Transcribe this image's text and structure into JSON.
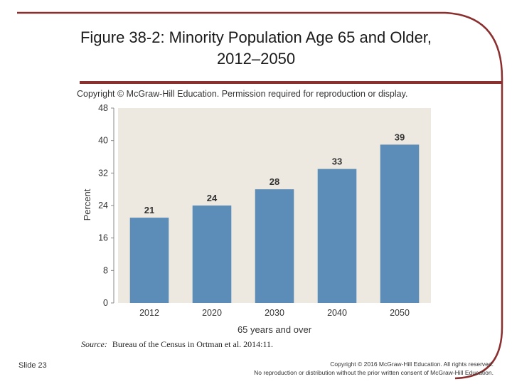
{
  "slide": {
    "title_line1": "Figure 38-2: Minority Population Age 65 and Older,",
    "title_line2": "2012–2050",
    "number": "Slide 23",
    "copyright_line1": "Copyright © 2016 McGraw-Hill Education. All rights reserved.",
    "copyright_line2": "No reproduction or distribution without the prior written consent of McGraw-Hill Education.",
    "accent_color": "#8b2e2e"
  },
  "chart_data": {
    "type": "bar",
    "notice": "Copyright © McGraw-Hill Education. Permission required for reproduction or display.",
    "categories": [
      "2012",
      "2020",
      "2030",
      "2040",
      "2050"
    ],
    "values": [
      21,
      24,
      28,
      33,
      39
    ],
    "data_labels": [
      "21",
      "24",
      "28",
      "33",
      "39"
    ],
    "ylabel": "Percent",
    "xlabel": "65 years and over",
    "yticks": [
      "0",
      "8",
      "16",
      "24",
      "32",
      "40",
      "48"
    ],
    "ylim": [
      0,
      48
    ],
    "source_label": "Source:",
    "source_text": "Bureau of the Census in Ortman et al. 2014:11.",
    "bar_color": "#5b8db8",
    "plot_bg": "#ede9e0",
    "grid": false
  }
}
